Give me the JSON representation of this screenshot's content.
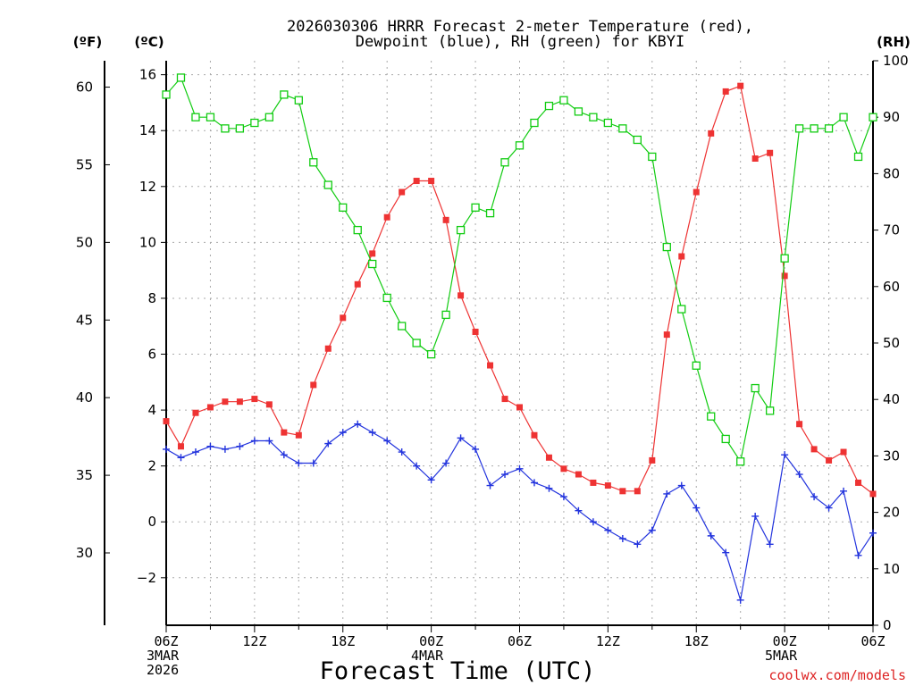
{
  "title": {
    "line1": "2026030306 HRRR Forecast 2-meter Temperature (red),",
    "line2": "Dewpoint (blue), RH (green) for KBYI"
  },
  "axis_units": {
    "f": "(ºF)",
    "c": "(ºC)",
    "rh": "(RH)"
  },
  "xtitle": "Forecast Time (UTC)",
  "credit": "coolwx.com/models",
  "date_labels": {
    "start_a": "3MAR",
    "start_b": "2026",
    "mid1": "4MAR",
    "mid2": "5MAR"
  },
  "colors": {
    "temperature": "#ee3333",
    "dewpoint": "#2233dd",
    "rh": "#11cc11",
    "grid": "#aaaaaa"
  },
  "chart_data": {
    "type": "line",
    "title": "2026030306 HRRR Forecast 2-meter Temperature (red), Dewpoint (blue), RH (green) for KBYI",
    "xlabel": "Forecast Time (UTC)",
    "x_hours_from_start": [
      0,
      1,
      2,
      3,
      4,
      5,
      6,
      7,
      8,
      9,
      10,
      11,
      12,
      13,
      14,
      15,
      16,
      17,
      18,
      19,
      20,
      21,
      22,
      23,
      24,
      25,
      26,
      27,
      28,
      29,
      30,
      31,
      32,
      33,
      34,
      35,
      36,
      37,
      38,
      39,
      40,
      41,
      42,
      43,
      44,
      45,
      46,
      47,
      48
    ],
    "x_ticks": [
      "06Z",
      "12Z",
      "18Z",
      "00Z",
      "06Z",
      "12Z",
      "18Z",
      "00Z",
      "06Z"
    ],
    "x_tick_hours": [
      0,
      6,
      12,
      18,
      24,
      30,
      36,
      42,
      48
    ],
    "left_axis": {
      "label": "(ºC)",
      "ylim": [
        -3.7,
        16.5
      ],
      "ticks": [
        -2,
        0,
        2,
        4,
        6,
        8,
        10,
        12,
        14,
        16
      ]
    },
    "outer_axis": {
      "label": "(ºF)",
      "ticks": [
        30,
        35,
        40,
        45,
        50,
        55,
        60
      ]
    },
    "right_axis": {
      "label": "(RH)",
      "ylim": [
        0,
        100
      ],
      "ticks": [
        0,
        10,
        20,
        30,
        40,
        50,
        60,
        70,
        80,
        90,
        100
      ]
    },
    "grid": true,
    "series": [
      {
        "name": "Temperature",
        "axis": "C",
        "color": "#ee3333",
        "marker": "filled-square",
        "values": [
          3.6,
          2.7,
          3.9,
          4.1,
          4.3,
          4.3,
          4.4,
          4.2,
          3.2,
          3.1,
          4.9,
          6.2,
          7.3,
          8.5,
          9.6,
          10.9,
          11.8,
          12.2,
          12.2,
          10.8,
          8.1,
          6.8,
          5.6,
          4.4,
          4.1,
          3.1,
          2.3,
          1.9,
          1.7,
          1.4,
          1.3,
          1.1,
          1.1,
          2.2,
          6.7,
          9.5,
          11.8,
          13.9,
          15.4,
          15.6,
          13.0,
          13.2,
          8.8,
          3.5,
          2.6,
          2.2,
          2.5,
          1.4,
          1.0
        ]
      },
      {
        "name": "Dewpoint",
        "axis": "C",
        "color": "#2233dd",
        "marker": "plus",
        "values": [
          2.6,
          2.3,
          2.5,
          2.7,
          2.6,
          2.7,
          2.9,
          2.9,
          2.4,
          2.1,
          2.1,
          2.8,
          3.2,
          3.5,
          3.2,
          2.9,
          2.5,
          2.0,
          1.5,
          2.1,
          3.0,
          2.6,
          1.3,
          1.7,
          1.9,
          1.4,
          1.2,
          0.9,
          0.4,
          0.0,
          -0.3,
          -0.6,
          -0.8,
          -0.3,
          1.0,
          1.3,
          0.5,
          -0.5,
          -1.1,
          -2.8,
          0.2,
          -0.8,
          2.4,
          1.7,
          0.9,
          0.5,
          1.1,
          -1.2,
          -0.4
        ]
      },
      {
        "name": "RH",
        "axis": "RH",
        "color": "#11cc11",
        "marker": "open-square",
        "values": [
          94,
          97,
          90,
          90,
          88,
          88,
          89,
          90,
          94,
          93,
          82,
          78,
          74,
          70,
          64,
          58,
          53,
          50,
          48,
          55,
          70,
          74,
          73,
          82,
          85,
          89,
          92,
          93,
          91,
          90,
          89,
          88,
          86,
          83,
          67,
          56,
          46,
          37,
          33,
          29,
          42,
          38,
          65,
          88,
          88,
          88,
          90,
          83,
          90
        ]
      }
    ]
  }
}
